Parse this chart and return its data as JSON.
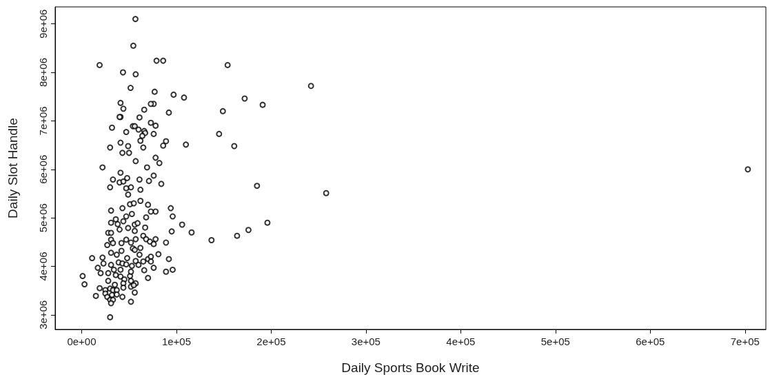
{
  "chart_data": {
    "type": "scatter",
    "xlabel": "Daily Sports Book Write",
    "ylabel": "Daily Slot Handle",
    "xlim": [
      -28000,
      722000
    ],
    "ylim": [
      2700000,
      9350000
    ],
    "xticks": [
      {
        "value": 0,
        "label": "0e+00"
      },
      {
        "value": 100000,
        "label": "1e+05"
      },
      {
        "value": 200000,
        "label": "2e+05"
      },
      {
        "value": 300000,
        "label": "3e+05"
      },
      {
        "value": 400000,
        "label": "4e+05"
      },
      {
        "value": 500000,
        "label": "5e+05"
      },
      {
        "value": 600000,
        "label": "6e+05"
      },
      {
        "value": 700000,
        "label": "7e+05"
      }
    ],
    "yticks": [
      {
        "value": 3000000,
        "label": "3e+06"
      },
      {
        "value": 4000000,
        "label": "4e+06"
      },
      {
        "value": 5000000,
        "label": "5e+06"
      },
      {
        "value": 6000000,
        "label": "6e+06"
      },
      {
        "value": 7000000,
        "label": "7e+06"
      },
      {
        "value": 8000000,
        "label": "8e+06"
      },
      {
        "value": 9000000,
        "label": "9e+06"
      }
    ],
    "grid": false,
    "marker": "circle",
    "series": [
      {
        "color": "#000000",
        "x": [
          56700,
          54500,
          18900,
          79000,
          86000,
          43600,
          57000,
          51600,
          97000,
          108000,
          77000,
          154000,
          242000,
          172000,
          191000,
          149000,
          76000,
          73000,
          41000,
          44000,
          92000,
          41000,
          40000,
          66000,
          32000,
          54000,
          56000,
          60000,
          73000,
          145000,
          110000,
          161000,
          89000,
          86000,
          30000,
          49000,
          22000,
          69000,
          185000,
          258000,
          703000,
          84000,
          30000,
          137000,
          164000,
          176000,
          196000,
          116000,
          106000,
          95000,
          94000,
          96000,
          78000,
          89000,
          96000,
          89000,
          61000,
          78000,
          47000,
          66000,
          67000,
          64000,
          76000,
          62000,
          41000,
          43000,
          50000,
          65000,
          78000,
          82000,
          57000,
          41000,
          33000,
          40000,
          44000,
          48000,
          61000,
          71000,
          76000,
          47000,
          52000,
          62000,
          49000,
          31000,
          43000,
          51000,
          55000,
          62000,
          70000,
          73000,
          53000,
          47000,
          68000,
          36000,
          31000,
          38000,
          44000,
          49000,
          40000,
          56000,
          59000,
          56000,
          67000,
          65000,
          28000,
          31000,
          31000,
          27000,
          33000,
          42000,
          47000,
          52000,
          57000,
          68000,
          72000,
          78000,
          76000,
          31000,
          37000,
          42000,
          48000,
          54000,
          56000,
          62000,
          61000,
          11000,
          22000,
          23000,
          17000,
          31000,
          39000,
          43000,
          47000,
          53000,
          57000,
          65000,
          70000,
          73000,
          73000,
          81000,
          92000,
          76000,
          66000,
          60000,
          20000,
          28000,
          34000,
          41000,
          36000,
          41000,
          51000,
          52000,
          45000,
          70000,
          1000,
          3000,
          28000,
          35000,
          44000,
          52000,
          57000,
          19000,
          25000,
          30000,
          33000,
          37000,
          44000,
          52000,
          55000,
          15000,
          25000,
          32000,
          37000,
          43000,
          56000,
          27000,
          30000,
          33000,
          31000,
          52000,
          30000
        ],
        "values": [
          9100000,
          8550000,
          8150000,
          8240000,
          8240000,
          8000000,
          7960000,
          7680000,
          7540000,
          7480000,
          7600000,
          8150000,
          7720000,
          7460000,
          7330000,
          7200000,
          7350000,
          7350000,
          7370000,
          7250000,
          7170000,
          7080000,
          7080000,
          7230000,
          6860000,
          6890000,
          6890000,
          6820000,
          6960000,
          6730000,
          6510000,
          6480000,
          6580000,
          6490000,
          6450000,
          6480000,
          6040000,
          6040000,
          5660000,
          5510000,
          6000000,
          5700000,
          5630000,
          4540000,
          4630000,
          4750000,
          4900000,
          4700000,
          4860000,
          4720000,
          5200000,
          5030000,
          5130000,
          4490000,
          3930000,
          3890000,
          7070000,
          6900000,
          6770000,
          6790000,
          6750000,
          6690000,
          6730000,
          6590000,
          6550000,
          6340000,
          6340000,
          6450000,
          6240000,
          6130000,
          6170000,
          5930000,
          5790000,
          5730000,
          5750000,
          5820000,
          5790000,
          5760000,
          5870000,
          5610000,
          5630000,
          5580000,
          5480000,
          5150000,
          5200000,
          5280000,
          5300000,
          5350000,
          5270000,
          5130000,
          5080000,
          5030000,
          5010000,
          4970000,
          4900000,
          4870000,
          4930000,
          4790000,
          4760000,
          4860000,
          4890000,
          4730000,
          4800000,
          4630000,
          4690000,
          4690000,
          4550000,
          4440000,
          4480000,
          4480000,
          4550000,
          4490000,
          4560000,
          4560000,
          4510000,
          4560000,
          4460000,
          4280000,
          4240000,
          4320000,
          4170000,
          4370000,
          4340000,
          4380000,
          4240000,
          4170000,
          4180000,
          4060000,
          3970000,
          4030000,
          4080000,
          4060000,
          4040000,
          4010000,
          4110000,
          4100000,
          4150000,
          4200000,
          4100000,
          4250000,
          4150000,
          3970000,
          3920000,
          4030000,
          3860000,
          3860000,
          3930000,
          3930000,
          3820000,
          3790000,
          3800000,
          3890000,
          3730000,
          3760000,
          3800000,
          3630000,
          3700000,
          3620000,
          3650000,
          3700000,
          3650000,
          3550000,
          3510000,
          3540000,
          3510000,
          3510000,
          3560000,
          3580000,
          3610000,
          3390000,
          3440000,
          3410000,
          3420000,
          3370000,
          3460000,
          3370000,
          3310000,
          3310000,
          3240000,
          3270000,
          2950000
        ]
      }
    ]
  }
}
